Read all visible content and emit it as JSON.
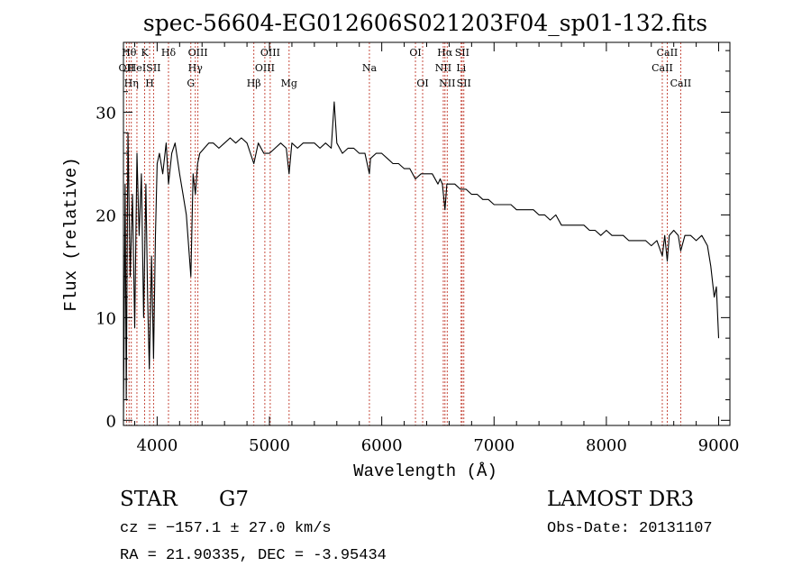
{
  "chart_data": {
    "type": "line",
    "title": "spec-56604-EG012606S021203F04_sp01-132.fits",
    "xlabel": "Wavelength (Å)",
    "ylabel": "Flux (relative)",
    "xlim": [
      3700,
      9100
    ],
    "ylim": [
      -0.5,
      36.8
    ],
    "xticks": [
      4000,
      5000,
      6000,
      7000,
      8000,
      9000
    ],
    "yticks": [
      0,
      10,
      20,
      30
    ],
    "grid": false,
    "series": [
      {
        "name": "flux",
        "x": [
          3700,
          3715,
          3725,
          3740,
          3760,
          3780,
          3800,
          3820,
          3840,
          3860,
          3880,
          3900,
          3915,
          3930,
          3950,
          3968,
          3985,
          4000,
          4020,
          4050,
          4080,
          4101,
          4130,
          4160,
          4200,
          4230,
          4260,
          4280,
          4300,
          4320,
          4340,
          4360,
          4380,
          4420,
          4460,
          4500,
          4550,
          4600,
          4650,
          4700,
          4750,
          4800,
          4861,
          4900,
          4950,
          5000,
          5050,
          5100,
          5150,
          5175,
          5200,
          5250,
          5300,
          5350,
          5400,
          5450,
          5500,
          5550,
          5577,
          5600,
          5650,
          5700,
          5750,
          5800,
          5850,
          5890,
          5900,
          5950,
          6000,
          6050,
          6100,
          6150,
          6200,
          6250,
          6300,
          6350,
          6400,
          6450,
          6500,
          6520,
          6540,
          6563,
          6580,
          6600,
          6650,
          6700,
          6750,
          6800,
          6850,
          6900,
          6950,
          7000,
          7050,
          7100,
          7150,
          7200,
          7250,
          7300,
          7350,
          7400,
          7450,
          7500,
          7550,
          7600,
          7650,
          7700,
          7750,
          7800,
          7850,
          7900,
          7950,
          8000,
          8050,
          8100,
          8150,
          8200,
          8250,
          8300,
          8350,
          8400,
          8450,
          8498,
          8520,
          8542,
          8560,
          8600,
          8640,
          8662,
          8700,
          8750,
          8800,
          8850,
          8900,
          8930,
          8960,
          8980,
          9000
        ],
        "y": [
          0,
          23,
          2,
          28,
          14,
          22,
          9,
          26,
          18,
          24,
          10,
          23,
          12,
          5,
          16,
          6,
          18,
          25,
          26,
          24,
          27,
          23,
          26,
          27,
          24,
          22,
          20,
          17,
          14,
          24,
          22,
          25,
          26,
          26.5,
          27,
          27,
          26.5,
          27,
          27.5,
          27,
          27.5,
          27,
          25,
          27,
          26,
          26,
          26.5,
          27,
          26.5,
          24,
          27,
          26.5,
          27,
          27,
          27,
          26.5,
          27,
          26.5,
          31,
          27,
          26,
          26.5,
          26.5,
          26,
          26,
          24,
          25.5,
          26,
          26,
          25.5,
          25,
          25,
          24.5,
          24.5,
          23.5,
          24,
          24,
          24,
          23,
          23.5,
          23,
          20.5,
          23,
          23,
          23,
          22.5,
          22.5,
          22,
          22,
          21.5,
          21.5,
          21,
          21,
          21,
          21,
          20.5,
          20.5,
          20.5,
          20.5,
          20,
          20,
          19.5,
          20,
          19,
          19,
          19,
          19,
          19,
          18.5,
          18.5,
          18,
          18.5,
          18,
          18,
          18,
          17.5,
          17.5,
          17.5,
          17.5,
          17,
          17.5,
          16,
          18,
          15.5,
          18,
          18.5,
          18,
          16.5,
          18,
          18,
          17.5,
          18,
          17,
          15,
          12,
          13,
          8
        ]
      }
    ],
    "lines": [
      {
        "x": 3727,
        "label": "OII",
        "row": 2
      },
      {
        "x": 3750,
        "label": "Hθ",
        "row": 1
      },
      {
        "x": 3770,
        "label": "Hη",
        "row": 3
      },
      {
        "x": 3820,
        "label": "HeI",
        "row": 2
      },
      {
        "x": 3889,
        "label": "K",
        "row": 1
      },
      {
        "x": 3933,
        "label": "H",
        "row": 3
      },
      {
        "x": 3968,
        "label": "SII",
        "row": 2
      },
      {
        "x": 4101,
        "label": "Hδ",
        "row": 1
      },
      {
        "x": 4300,
        "label": "G",
        "row": 3
      },
      {
        "x": 4340,
        "label": "Hγ",
        "row": 2
      },
      {
        "x": 4363,
        "label": "OIII",
        "row": 1
      },
      {
        "x": 4861,
        "label": "Hβ",
        "row": 3
      },
      {
        "x": 4959,
        "label": "OIII",
        "row": 2
      },
      {
        "x": 5007,
        "label": "OIII",
        "row": 1
      },
      {
        "x": 5175,
        "label": "Mg",
        "row": 3
      },
      {
        "x": 5890,
        "label": "Na",
        "row": 2
      },
      {
        "x": 6300,
        "label": "OI",
        "row": 1
      },
      {
        "x": 6364,
        "label": "OI",
        "row": 3
      },
      {
        "x": 6548,
        "label": "NII",
        "row": 2
      },
      {
        "x": 6563,
        "label": "Hα",
        "row": 1
      },
      {
        "x": 6583,
        "label": "NII",
        "row": 3
      },
      {
        "x": 6707,
        "label": "Li",
        "row": 2
      },
      {
        "x": 6716,
        "label": "SII",
        "row": 1
      },
      {
        "x": 6731,
        "label": "SII",
        "row": 3
      },
      {
        "x": 8498,
        "label": "CaII",
        "row": 2
      },
      {
        "x": 8542,
        "label": "CaII",
        "row": 1
      },
      {
        "x": 8662,
        "label": "CaII",
        "row": 3
      }
    ]
  },
  "info": {
    "class_label": "STAR",
    "subclass": "G7",
    "survey": "LAMOST DR3",
    "cz": "cz = −157.1 ± 27.0 km/s",
    "obs_date": "Obs-Date: 20131107",
    "coords": "RA =  21.90335, DEC =  -3.95434"
  }
}
